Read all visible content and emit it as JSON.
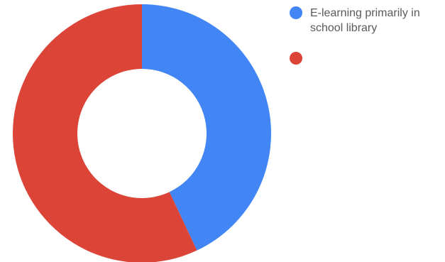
{
  "chart_data": {
    "type": "pie",
    "style": "donut",
    "legend_position": "right",
    "series": [
      {
        "name": "E-learning primarily in school library",
        "value": 43,
        "color": "#4285f4"
      },
      {
        "name": "",
        "value": 57,
        "color": "#db4437"
      }
    ]
  }
}
